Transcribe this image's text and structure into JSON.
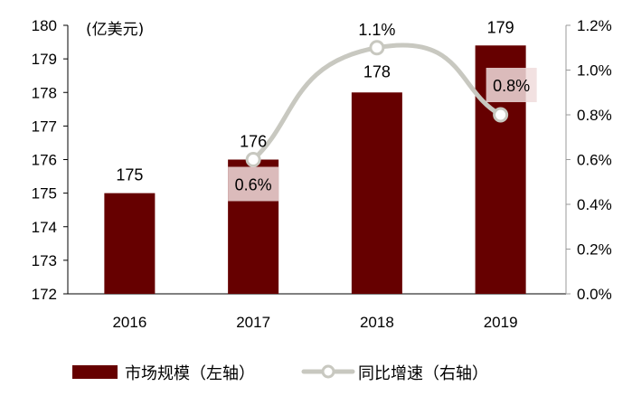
{
  "chart_data": {
    "type": "bar+line",
    "unit_label": "(亿美元)",
    "categories": [
      "2016",
      "2017",
      "2018",
      "2019"
    ],
    "series": [
      {
        "name": "市场规模（左轴）",
        "type": "bar",
        "axis": "left",
        "values": [
          175.0,
          176.0,
          178.0,
          179.4
        ],
        "labels": [
          "175",
          "176",
          "178",
          "179"
        ],
        "color": "#660000"
      },
      {
        "name": "同比增速（右轴）",
        "type": "line",
        "axis": "right",
        "values": [
          null,
          0.6,
          1.1,
          0.8
        ],
        "labels": [
          "",
          "0.6%",
          "1.1%",
          "0.8%"
        ],
        "color": "#c8c8c0"
      }
    ],
    "left_axis": {
      "ylim": [
        172,
        180
      ],
      "ticks": [
        "172",
        "173",
        "174",
        "175",
        "176",
        "177",
        "178",
        "179",
        "180"
      ]
    },
    "right_axis": {
      "ylim": [
        0,
        1.2
      ],
      "ticks": [
        "0.0%",
        "0.2%",
        "0.4%",
        "0.6%",
        "0.8%",
        "1.0%",
        "1.2%"
      ]
    },
    "grid": false,
    "legend": "bottom"
  }
}
